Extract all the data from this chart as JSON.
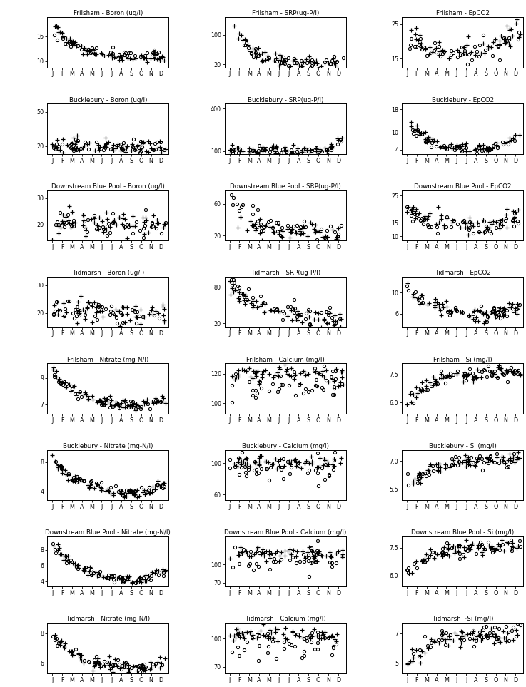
{
  "panels": [
    {
      "title": "Frilsham - Boron (ug/l)",
      "ylim": [
        8.5,
        20.5
      ],
      "yticks": [
        10,
        16
      ]
    },
    {
      "title": "Frilsham - SRP(ug-P/l)",
      "ylim": [
        12,
        148
      ],
      "yticks": [
        20,
        100
      ]
    },
    {
      "title": "Frilsham - EpCO2",
      "ylim": [
        12.5,
        27
      ],
      "yticks": [
        15,
        25
      ]
    },
    {
      "title": "Bucklebury - Boron (ug/l)",
      "ylim": [
        13,
        57
      ],
      "yticks": [
        20,
        50
      ]
    },
    {
      "title": "Bucklebury - SRP(ug-P/l)",
      "ylim": [
        80,
        435
      ],
      "yticks": [
        100,
        400
      ]
    },
    {
      "title": "Bucklebury - EpCO2",
      "ylim": [
        2.5,
        20
      ],
      "yticks": [
        4,
        10,
        18
      ]
    },
    {
      "title": "Downstream Blue Pool - Boron (ug/l)",
      "ylim": [
        14,
        33
      ],
      "yticks": [
        20,
        30
      ]
    },
    {
      "title": "Downstream Blue Pool - SRP(ug-P/l)",
      "ylim": [
        14,
        77
      ],
      "yticks": [
        20,
        60
      ]
    },
    {
      "title": "Downstream Blue Pool - EpCO2",
      "ylim": [
        8.5,
        27
      ],
      "yticks": [
        10,
        15,
        25
      ]
    },
    {
      "title": "Tidmarsh - Boron (ug/l)",
      "ylim": [
        15,
        33
      ],
      "yticks": [
        20,
        30
      ]
    },
    {
      "title": "Tidmarsh - SRP(ug-P/l)",
      "ylim": [
        14,
        97
      ],
      "yticks": [
        20,
        80
      ]
    },
    {
      "title": "Tidmarsh - EpCO2",
      "ylim": [
        3.5,
        13
      ],
      "yticks": [
        6,
        10
      ]
    },
    {
      "title": "Frilsham - Nitrate (mg-N/l)",
      "ylim": [
        6.3,
        10.1
      ],
      "yticks": [
        7,
        9
      ]
    },
    {
      "title": "Frilsham - Calcium (mg/l)",
      "ylim": [
        93,
        127
      ],
      "yticks": [
        100,
        120
      ]
    },
    {
      "title": "Frilsham - Si (mg/l)",
      "ylim": [
        5.4,
        8.1
      ],
      "yticks": [
        6.0,
        7.5
      ]
    },
    {
      "title": "Bucklebury - Nitrate (mg-N/l)",
      "ylim": [
        2.8,
        9.7
      ],
      "yticks": [
        4,
        8
      ]
    },
    {
      "title": "Bucklebury - Calcium (mg/l)",
      "ylim": [
        53,
        117
      ],
      "yticks": [
        60,
        100
      ]
    },
    {
      "title": "Bucklebury - Si (mg/l)",
      "ylim": [
        4.9,
        7.6
      ],
      "yticks": [
        5.5,
        7.0
      ]
    },
    {
      "title": "Downstream Blue Pool - Nitrate (mg-N/l)",
      "ylim": [
        3.3,
        9.7
      ],
      "yticks": [
        4,
        6,
        8
      ]
    },
    {
      "title": "Downstream Blue Pool - Calcium (mg/l)",
      "ylim": [
        63,
        147
      ],
      "yticks": [
        70,
        100
      ]
    },
    {
      "title": "Downstream Blue Pool - Si (mg/l)",
      "ylim": [
        5.4,
        8.1
      ],
      "yticks": [
        6.0,
        7.5
      ]
    },
    {
      "title": "Tidmarsh - Nitrate (mg-N/l)",
      "ylim": [
        5.3,
        8.7
      ],
      "yticks": [
        6.0,
        8.0
      ]
    },
    {
      "title": "Tidmarsh - Calcium (mg/l)",
      "ylim": [
        63,
        117
      ],
      "yticks": [
        70,
        100
      ]
    },
    {
      "title": "Tidmarsh -·Si (mg/l)",
      "ylim": [
        4.3,
        7.7
      ],
      "yticks": [
        5.0,
        7.0
      ]
    }
  ],
  "months": [
    "J",
    "F",
    "M",
    "A",
    "M",
    "J",
    "J",
    "A",
    "S",
    "O",
    "N",
    "D"
  ]
}
